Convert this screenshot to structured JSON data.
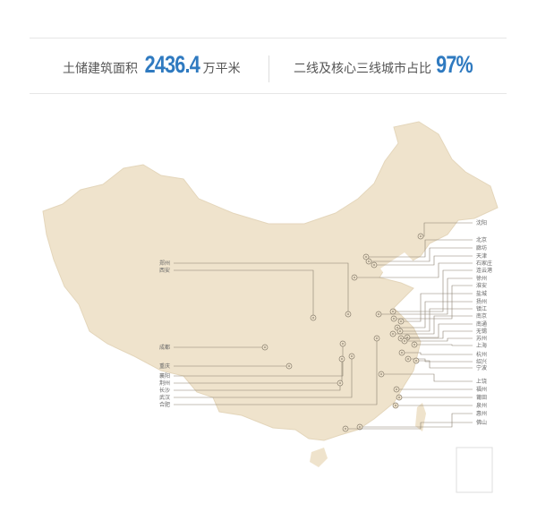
{
  "stats": [
    {
      "label": "土储建筑面积",
      "value": "2436.4",
      "unit": "万平米"
    },
    {
      "label": "二线及核心三线城市占比",
      "value": "97%",
      "unit": ""
    }
  ],
  "colors": {
    "land": "#efe3cc",
    "accent": "#2f7ac0",
    "line": "#8a8070"
  },
  "cities_right": [
    "沈阳",
    "北京",
    "廊坊",
    "天津",
    "石家庄",
    "连云港",
    "徐州",
    "淮安",
    "盐城",
    "扬州",
    "镇江",
    "南京",
    "南通",
    "无锡",
    "苏州",
    "上海",
    "杭州",
    "绍兴",
    "宁波",
    "上饶",
    "福州",
    "莆田",
    "泉州",
    "惠州",
    "佛山"
  ],
  "cities_left": [
    "郑州",
    "西安",
    "成都",
    "重庆",
    "襄阳",
    "荆州",
    "长沙",
    "武汉",
    "合肥"
  ],
  "marker_icon": "circle-dot-icon"
}
